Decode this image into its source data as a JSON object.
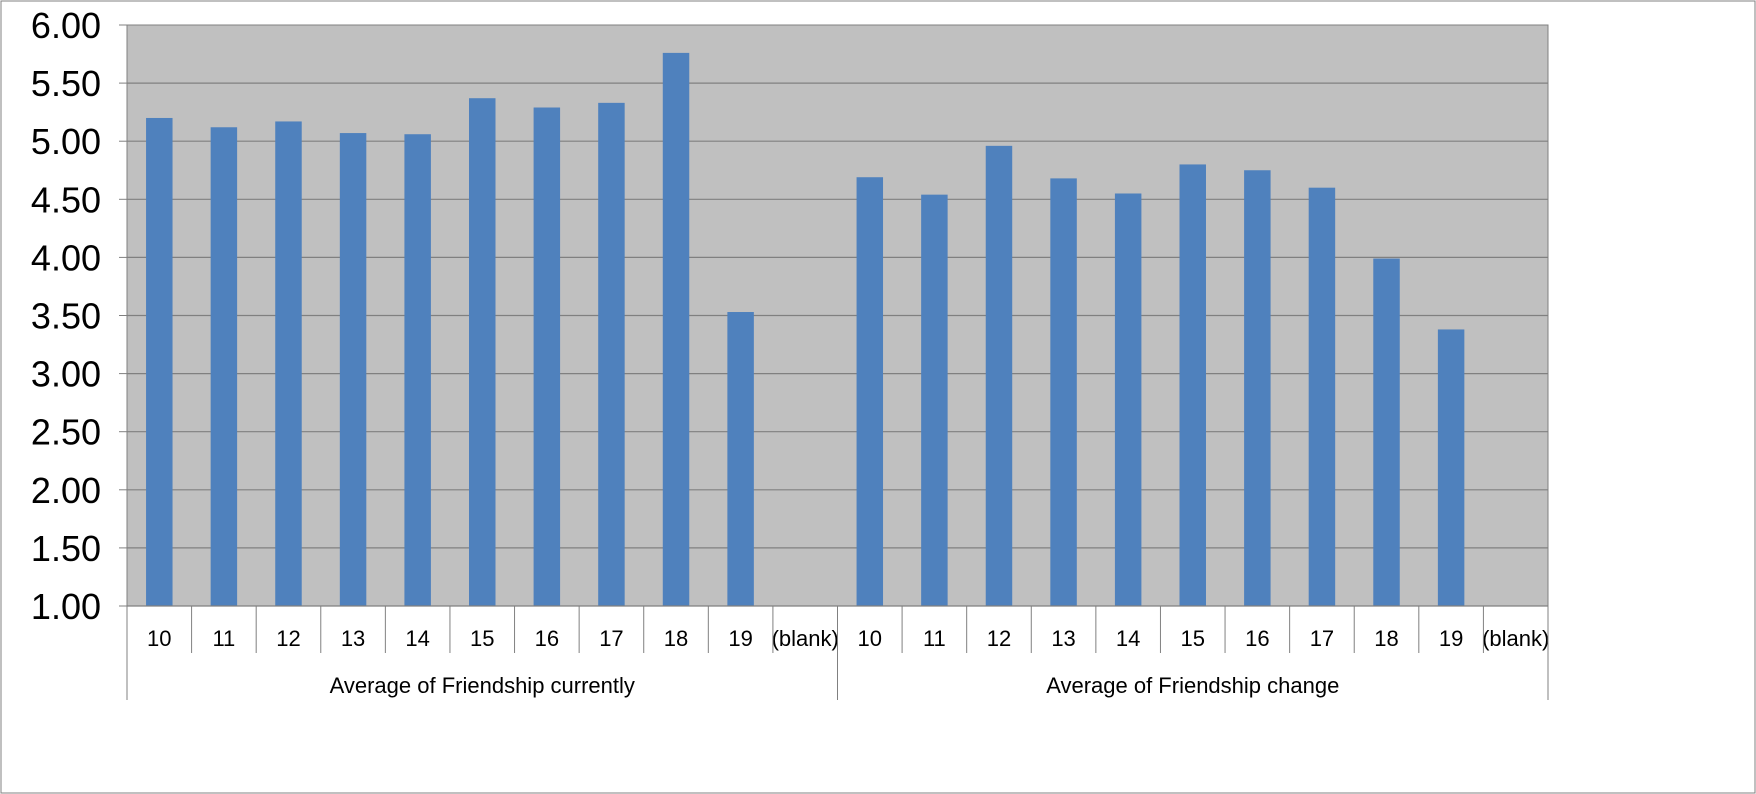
{
  "chart_data": {
    "type": "bar",
    "ylim": [
      1.0,
      6.0
    ],
    "ytick_labels": [
      "1.00",
      "1.50",
      "2.00",
      "2.50",
      "3.00",
      "3.50",
      "4.00",
      "4.50",
      "5.00",
      "5.50",
      "6.00"
    ],
    "grid": true,
    "legend": "none",
    "colors": {
      "bar": "#4F81BD",
      "plot_bg": "#C0C0C0",
      "grid": "#808080"
    },
    "groups": [
      {
        "name": "Average of Friendship currently",
        "categories": [
          "10",
          "11",
          "12",
          "13",
          "14",
          "15",
          "16",
          "17",
          "18",
          "19",
          "(blank)"
        ],
        "values": [
          5.2,
          5.12,
          5.17,
          5.07,
          5.06,
          5.37,
          5.29,
          5.33,
          5.76,
          3.53,
          null
        ]
      },
      {
        "name": "Average of Friendship change",
        "categories": [
          "10",
          "11",
          "12",
          "13",
          "14",
          "15",
          "16",
          "17",
          "18",
          "19",
          "(blank)"
        ],
        "values": [
          4.69,
          4.54,
          4.96,
          4.68,
          4.55,
          4.8,
          4.75,
          4.6,
          3.99,
          3.38,
          null
        ]
      }
    ]
  }
}
